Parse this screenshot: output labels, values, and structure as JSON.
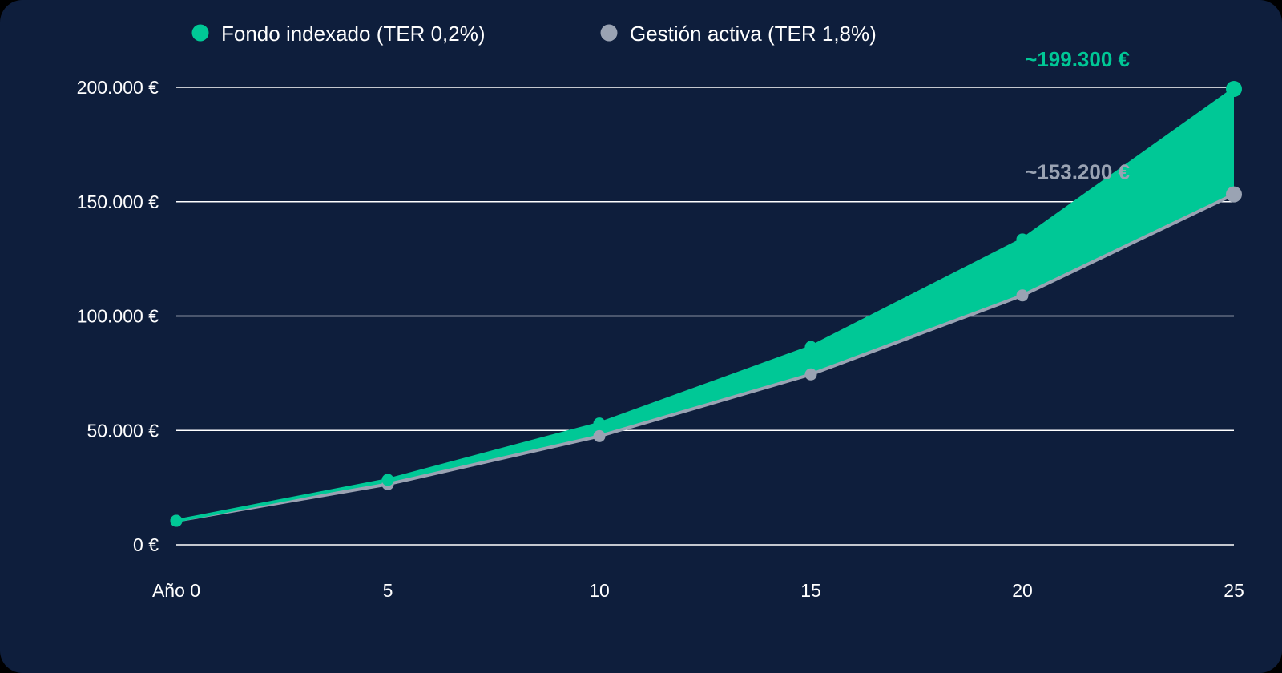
{
  "chart_data": {
    "type": "line",
    "title": "",
    "xlabel": "",
    "ylabel": "",
    "x": [
      0,
      5,
      10,
      15,
      20,
      25
    ],
    "x_tick_labels": [
      "Año 0",
      "5",
      "10",
      "15",
      "20",
      "25"
    ],
    "y_ticks": [
      0,
      50000,
      100000,
      150000,
      200000
    ],
    "y_tick_labels": [
      "0 €",
      "50.000 €",
      "100.000 €",
      "150.000 €",
      "200.000 €"
    ],
    "ylim": [
      0,
      200000
    ],
    "xlim": [
      0,
      25
    ],
    "grid": "horizontal",
    "legend_position": "top",
    "gap_fill": true,
    "series": [
      {
        "name": "Fondo indexado (TER 0,2%)",
        "color": "#00c896",
        "values": [
          10500,
          28400,
          53000,
          86500,
          133500,
          199300
        ],
        "end_label": "~199.300 €"
      },
      {
        "name": "Gestión activa (TER 1,8%)",
        "color": "#9aa3b3",
        "values": [
          10500,
          26500,
          47500,
          74500,
          109000,
          153200
        ],
        "end_label": "~153.200 €"
      }
    ]
  },
  "colors": {
    "background": "#0e1e3c",
    "gridline": "#ffffff",
    "text": "#ffffff"
  }
}
